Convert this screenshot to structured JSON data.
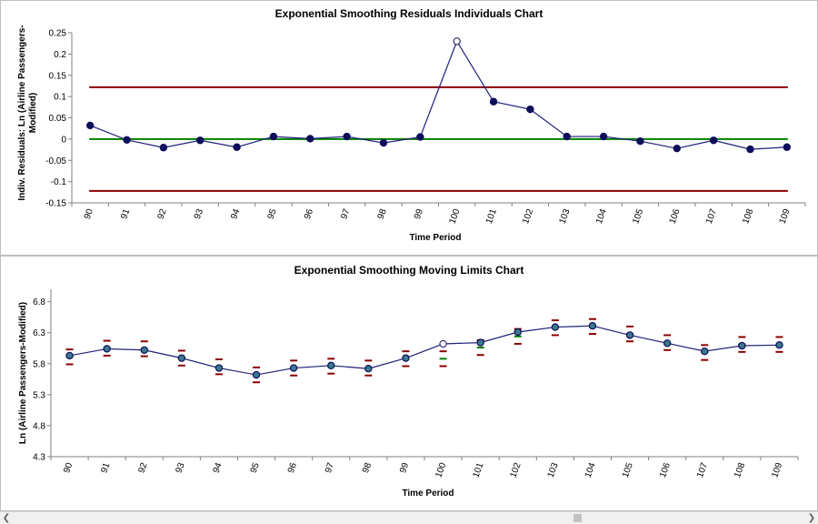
{
  "charts": [
    {
      "type": "line",
      "title": "Exponential Smoothing Residuals Individuals Chart",
      "xlabel": "Time Period",
      "ylabel_lines": [
        "Indiv. Residuals: Ln (Airline Passengers-",
        "Modified)"
      ],
      "categories": [
        "90",
        "91",
        "92",
        "93",
        "94",
        "95",
        "96",
        "97",
        "98",
        "99",
        "100",
        "101",
        "102",
        "103",
        "104",
        "105",
        "106",
        "107",
        "108",
        "109"
      ],
      "y_ticks": [
        "-0.15",
        "-0.1",
        "-0.05",
        "0",
        "0.05",
        "0.1",
        "0.15",
        "0.2",
        "0.25"
      ],
      "ylim": [
        -0.15,
        0.25
      ],
      "values": [
        0.032,
        -0.002,
        -0.02,
        -0.003,
        -0.019,
        0.006,
        0.001,
        0.006,
        -0.009,
        0.005,
        0.23,
        0.088,
        0.07,
        0.006,
        0.006,
        -0.005,
        -0.022,
        -0.003,
        -0.024,
        -0.019
      ],
      "out_of_control": [
        10
      ],
      "ucl": 0.122,
      "center": 0,
      "lcl": -0.122,
      "colors": {
        "line": "#1f1f7a",
        "marker": "#0d0d5c",
        "limits": "#8b0000",
        "center": "#008000"
      }
    },
    {
      "type": "line",
      "title": "Exponential Smoothing Moving Limits Chart",
      "xlabel": "Time Period",
      "ylabel_lines": [
        "Ln (Airline Passengers-Modified)"
      ],
      "categories": [
        "90",
        "91",
        "92",
        "93",
        "94",
        "95",
        "96",
        "97",
        "98",
        "99",
        "100",
        "101",
        "102",
        "103",
        "104",
        "105",
        "106",
        "107",
        "108",
        "109"
      ],
      "y_ticks": [
        "4.3",
        "4.8",
        "5.3",
        "5.8",
        "6.3",
        "6.8"
      ],
      "ylim": [
        4.3,
        7.0
      ],
      "values": [
        5.93,
        6.04,
        6.02,
        5.89,
        5.73,
        5.62,
        5.73,
        5.77,
        5.72,
        5.89,
        6.12,
        6.14,
        6.31,
        6.39,
        6.41,
        6.26,
        6.13,
        6.0,
        6.09,
        6.1
      ],
      "center_values": [
        5.91,
        6.05,
        6.04,
        5.89,
        5.75,
        5.62,
        5.73,
        5.76,
        5.73,
        5.88,
        5.88,
        6.06,
        6.24,
        6.38,
        6.4,
        6.28,
        6.14,
        5.98,
        6.11,
        6.11
      ],
      "ucl_values": [
        6.03,
        6.17,
        6.16,
        6.01,
        5.87,
        5.74,
        5.85,
        5.88,
        5.85,
        6.0,
        6.0,
        6.18,
        6.36,
        6.5,
        6.52,
        6.4,
        6.26,
        6.1,
        6.23,
        6.23
      ],
      "lcl_values": [
        5.79,
        5.93,
        5.92,
        5.77,
        5.63,
        5.5,
        5.61,
        5.64,
        5.61,
        5.76,
        5.76,
        5.94,
        6.12,
        6.26,
        6.28,
        6.16,
        6.02,
        5.86,
        5.99,
        5.99
      ],
      "out_of_control": [
        10
      ],
      "colors": {
        "line": "#1f1f7a",
        "marker": "#0d0d5c",
        "marker_fill": "#3a7a8c",
        "limits": "#8b0000",
        "center": "#008000"
      }
    }
  ]
}
